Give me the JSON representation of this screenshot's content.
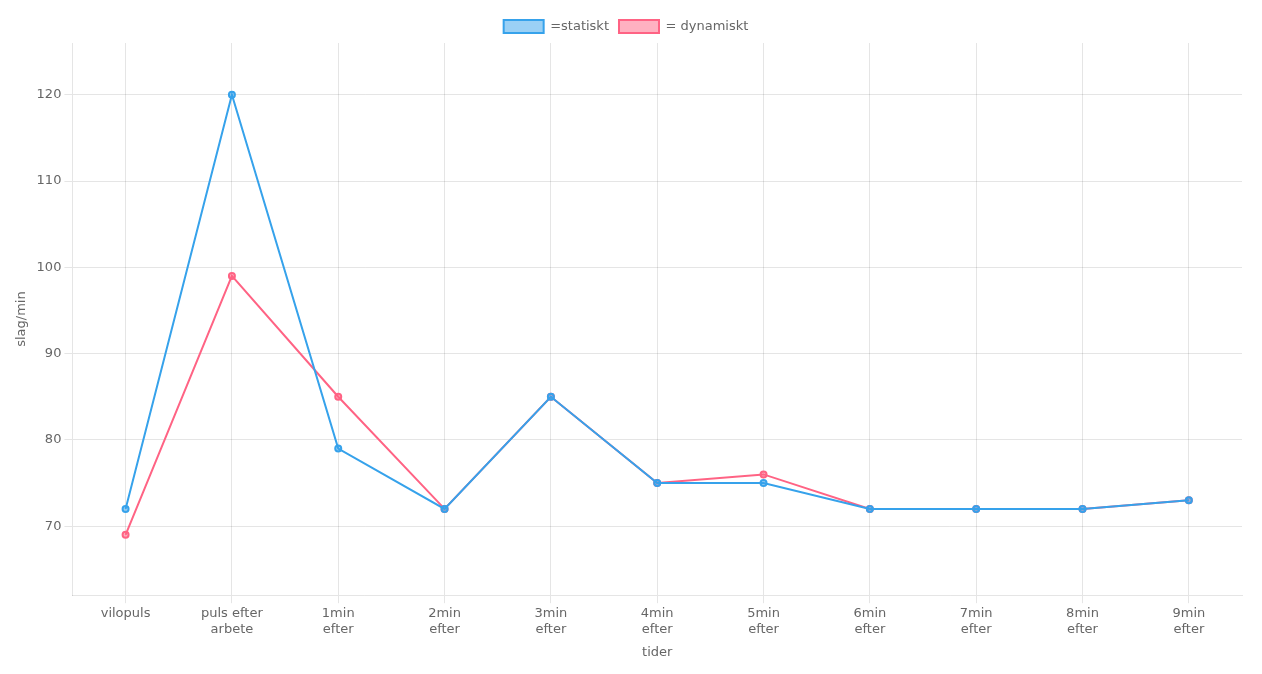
{
  "chart_data": {
    "type": "line",
    "xlabel": "tider",
    "ylabel": "slag/min",
    "categories": [
      "vilopuls",
      "puls efter\narbete",
      "1min\nefter",
      "2min\nefter",
      "3min\nefter",
      "4min\nefter",
      "5min\nefter",
      "6min\nefter",
      "7min\nefter",
      "8min\nefter",
      "9min\nefter"
    ],
    "series": [
      {
        "name": "=statiskt",
        "values": [
          72,
          120,
          79,
          72,
          85,
          75,
          75,
          72,
          72,
          72,
          73
        ]
      },
      {
        "name": "= dynamiskt",
        "values": [
          69,
          99,
          85,
          72,
          85,
          75,
          76,
          72,
          72,
          72,
          73
        ]
      }
    ],
    "ylim": [
      62,
      126
    ],
    "yticks": [
      70,
      80,
      90,
      100,
      110,
      120
    ],
    "grid": true,
    "legend": "top"
  }
}
